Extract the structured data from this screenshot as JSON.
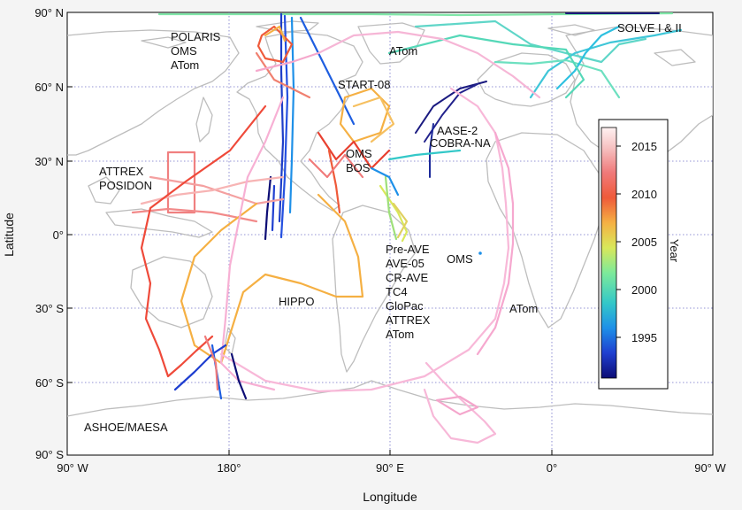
{
  "axes": {
    "xlabel": "Longitude",
    "ylabel": "Latitude",
    "xticks": [
      "90° W",
      "180°",
      "90° E",
      "0°",
      "90° W"
    ],
    "yticks": [
      "90° N",
      "60° N",
      "30° N",
      "0°",
      "30° S",
      "60° S",
      "90° S"
    ]
  },
  "colorbar": {
    "label": "Year",
    "ticks": [
      "2015",
      "2010",
      "2005",
      "2000",
      "1995"
    ],
    "range": [
      1991,
      2018
    ],
    "colors": [
      "#0d0d75",
      "#1f3fd0",
      "#1e90e8",
      "#33c8c8",
      "#7dea9a",
      "#d9e85a",
      "#f5b043",
      "#ef5a3a",
      "#f07a7a",
      "#f6c2c2",
      "#fff2f2"
    ]
  },
  "annotations": {
    "polaris": "POLARIS",
    "oms_nw": "OMS",
    "atom_nw": "ATom",
    "atom_north": "ATom",
    "start08": "START-08",
    "solve": "SOLVE I & II",
    "aase2": "AASE-2",
    "cobra": "COBRA-NA",
    "oms_center": "OMS",
    "bos": "BOS",
    "attrex_w": "ATTREX",
    "posidon": "POSIDON",
    "preave": "Pre-AVE",
    "ave05": "AVE-05",
    "crave": "CR-AVE",
    "tc4": "TC4",
    "glopac": "GloPac",
    "attrex_s": "ATTREX",
    "atom_s": "ATom",
    "oms_s": "OMS",
    "atom_e": "ATom",
    "hippo": "HIPPO",
    "ashoe": "ASHOE/MAESA"
  }
}
